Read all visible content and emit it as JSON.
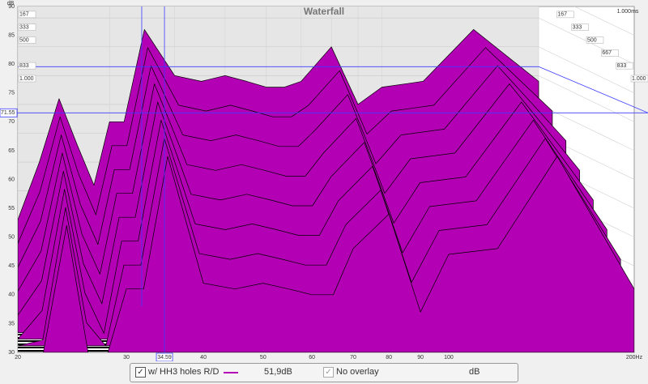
{
  "chart_data": {
    "type": "waterfall",
    "title": "Waterfall",
    "ylabel": "dB",
    "log_x": true,
    "x": [
      20,
      22,
      24,
      26,
      28,
      30,
      32,
      35,
      40,
      45,
      50,
      55,
      60,
      65,
      70,
      80,
      90,
      100,
      120,
      150,
      200
    ],
    "xlim": [
      20,
      200
    ],
    "xticks": [
      20,
      30,
      40,
      50,
      60,
      70,
      80,
      90,
      100,
      {
        "value": 200,
        "label": "200Hz"
      }
    ],
    "ylim": [
      30,
      90
    ],
    "yticks": [
      30,
      35,
      40,
      45,
      50,
      55,
      60,
      65,
      70,
      75,
      80,
      85,
      90
    ],
    "grid": true,
    "time_ticks_left": [
      167,
      333,
      500,
      833,
      {
        "value": 1000,
        "label": "1.000"
      }
    ],
    "time_ticks_right": [
      167,
      333,
      500,
      667,
      833,
      {
        "value": 1000,
        "label": "1.000"
      }
    ],
    "time_axis_label": "1.000ms",
    "cursor": {
      "x": 34.59,
      "y": 71.55,
      "color": "#3c3cff"
    },
    "series": [
      {
        "name": "w/ HH3 holes R/D",
        "color": "#b400b4",
        "slices": [
          [
            45,
            55,
            66,
            58,
            51,
            62,
            62,
            78,
            70,
            69,
            70,
            69,
            68,
            68,
            69,
            75,
            65,
            68,
            69,
            78,
            69
          ],
          [
            42,
            51,
            64,
            54,
            47,
            59,
            59,
            76,
            66,
            65,
            66,
            65,
            64,
            64,
            66,
            72,
            61,
            65,
            66,
            76,
            65
          ],
          [
            39,
            47,
            62,
            50,
            43,
            56,
            56,
            74,
            62,
            61,
            62,
            61,
            60,
            60,
            63,
            69,
            57,
            62,
            63,
            74,
            61
          ],
          [
            36,
            43,
            60,
            46,
            39,
            53,
            53,
            72,
            58,
            57,
            58,
            57,
            56,
            56,
            60,
            66,
            53,
            59,
            60,
            72,
            57
          ],
          [
            33,
            39,
            58,
            42,
            35,
            50,
            50,
            70,
            54,
            53,
            54,
            53,
            52,
            52,
            57,
            63,
            49,
            56,
            57,
            70,
            53
          ],
          [
            30,
            35,
            56,
            38,
            31,
            47,
            47,
            68,
            50,
            49,
            50,
            49,
            48,
            48,
            54,
            60,
            45,
            53,
            54,
            68,
            49
          ],
          [
            30,
            31,
            54,
            34,
            30,
            44,
            44,
            66,
            46,
            45,
            46,
            45,
            44,
            44,
            51,
            57,
            41,
            50,
            51,
            66,
            45
          ],
          [
            30,
            30,
            52,
            30,
            30,
            41,
            41,
            64,
            42,
            41,
            42,
            41,
            40,
            40,
            48,
            54,
            37,
            47,
            48,
            64,
            41
          ]
        ]
      }
    ],
    "legend": {
      "level": "51,9dB",
      "overlay": "No overlay",
      "unit": "dB"
    }
  }
}
